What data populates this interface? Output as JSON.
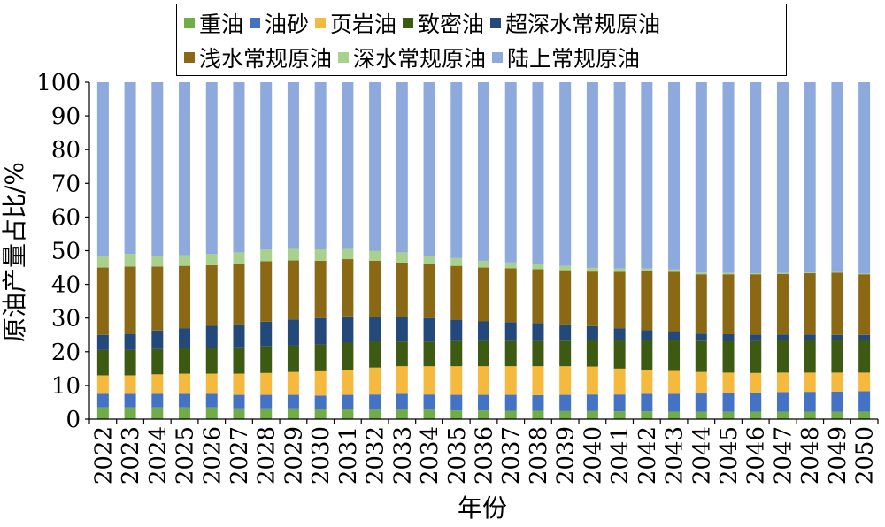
{
  "chart_data": {
    "type": "bar",
    "stacked": true,
    "xlabel": "年份",
    "ylabel": "原油产量占比/%",
    "ylim": [
      0,
      100
    ],
    "yticks": [
      0,
      10,
      20,
      30,
      40,
      50,
      60,
      70,
      80,
      90,
      100
    ],
    "grid": false,
    "legend_position": "top",
    "categories": [
      "2022",
      "2023",
      "2024",
      "2025",
      "2026",
      "2027",
      "2028",
      "2029",
      "2030",
      "2031",
      "2032",
      "2033",
      "2034",
      "2035",
      "2036",
      "2037",
      "2038",
      "2039",
      "2040",
      "2041",
      "2042",
      "2043",
      "2044",
      "2045",
      "2046",
      "2047",
      "2048",
      "2049",
      "2050"
    ],
    "series": [
      {
        "name": "重油",
        "color": "#70AD47",
        "values": [
          3.5,
          3.5,
          3.5,
          3.5,
          3.5,
          3.2,
          3.2,
          3.2,
          3.0,
          3.0,
          2.8,
          2.8,
          2.8,
          2.6,
          2.6,
          2.5,
          2.5,
          2.4,
          2.4,
          2.3,
          2.3,
          2.2,
          2.2,
          2.2,
          2.2,
          2.2,
          2.2,
          2.2,
          2.2
        ]
      },
      {
        "name": "油砂",
        "color": "#4472C4",
        "values": [
          4.0,
          4.0,
          4.0,
          4.0,
          4.0,
          4.0,
          4.0,
          4.0,
          4.0,
          4.2,
          4.5,
          4.7,
          4.5,
          4.6,
          4.6,
          4.7,
          4.6,
          4.8,
          4.9,
          5.0,
          5.2,
          5.3,
          5.4,
          5.5,
          5.6,
          5.8,
          5.9,
          6.0,
          6.1
        ]
      },
      {
        "name": "页岩油",
        "color": "#F5B93E",
        "values": [
          5.5,
          5.5,
          5.8,
          6.0,
          6.0,
          6.3,
          6.5,
          6.8,
          7.2,
          7.5,
          8.0,
          8.2,
          8.4,
          8.5,
          8.5,
          8.5,
          8.6,
          8.5,
          8.3,
          7.7,
          7.2,
          6.8,
          6.4,
          6.1,
          5.9,
          5.8,
          5.7,
          5.6,
          5.5
        ]
      },
      {
        "name": "致密油",
        "color": "#3D5A12",
        "values": [
          7.5,
          7.5,
          7.5,
          7.7,
          7.7,
          7.8,
          8.0,
          7.9,
          8.0,
          8.0,
          7.8,
          7.3,
          7.3,
          7.5,
          7.5,
          7.5,
          7.5,
          7.6,
          8.0,
          8.5,
          8.8,
          9.2,
          9.3,
          9.3,
          9.5,
          9.6,
          9.7,
          9.7,
          9.7
        ]
      },
      {
        "name": "超深水常规原油",
        "color": "#22497A",
        "values": [
          4.5,
          4.8,
          5.5,
          5.8,
          6.5,
          6.8,
          7.2,
          7.7,
          7.8,
          7.8,
          7.1,
          7.3,
          7.0,
          6.3,
          5.8,
          5.6,
          5.3,
          4.8,
          4.0,
          3.5,
          2.9,
          2.6,
          2.1,
          2.1,
          1.9,
          1.7,
          1.6,
          1.5,
          1.5
        ]
      },
      {
        "name": "浅水常规原油",
        "color": "#8B6914",
        "values": [
          20.0,
          20.0,
          19.0,
          18.5,
          18.0,
          18.0,
          18.0,
          17.5,
          17.0,
          17.0,
          16.8,
          16.2,
          16.0,
          16.0,
          16.0,
          16.0,
          16.0,
          16.1,
          16.2,
          16.7,
          17.5,
          17.6,
          17.6,
          17.8,
          17.9,
          18.0,
          18.2,
          18.5,
          18.0
        ]
      },
      {
        "name": "深水常规原油",
        "color": "#A9D18E",
        "values": [
          3.5,
          3.7,
          3.2,
          3.2,
          3.3,
          3.4,
          3.4,
          3.4,
          3.4,
          3.0,
          2.9,
          3.0,
          2.5,
          2.3,
          2.0,
          1.7,
          1.6,
          1.3,
          1.1,
          1.0,
          0.8,
          0.7,
          0.5,
          0.4,
          0.3,
          0.3,
          0.2,
          0.2,
          0.2
        ]
      },
      {
        "name": "陆上常规原油",
        "color": "#8EA9DB",
        "values": [
          51.5,
          51.0,
          51.5,
          51.3,
          51.0,
          50.5,
          49.7,
          49.5,
          49.6,
          49.5,
          50.1,
          50.5,
          51.5,
          52.2,
          53.0,
          53.5,
          53.9,
          54.5,
          55.1,
          55.3,
          55.3,
          55.6,
          56.5,
          56.6,
          56.7,
          56.6,
          56.5,
          56.3,
          56.8
        ]
      }
    ]
  }
}
